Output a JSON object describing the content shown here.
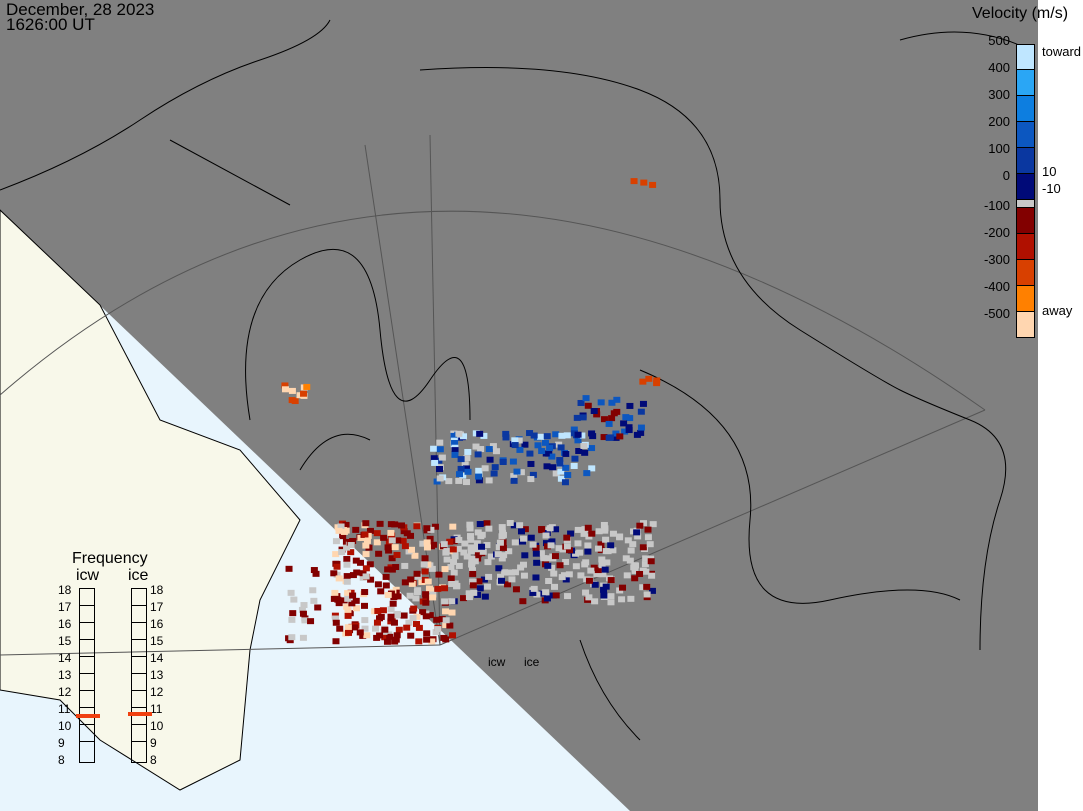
{
  "header": {
    "date": "December, 28 2023",
    "time": "1626:00 UT"
  },
  "legend": {
    "title": "Velocity (m/s)",
    "ticks": [
      "500",
      "400",
      "300",
      "200",
      "100",
      "0",
      "-100",
      "-200",
      "-300",
      "-400",
      "-500"
    ],
    "toward_label": "toward",
    "away_label": "away",
    "pos_threshold": "10",
    "neg_threshold": "-10",
    "colors": [
      "#bfe6ff",
      "#2aa6f5",
      "#0d7ee0",
      "#0c57c0",
      "#0a37a0",
      "#000a78",
      "#c8c8c8",
      "#820000",
      "#b01000",
      "#d84000",
      "#ff8000",
      "#ffd6b0"
    ]
  },
  "frequency": {
    "title": "Frequency",
    "radars": [
      {
        "name": "icw",
        "value_mhz": 10.7
      },
      {
        "name": "ice",
        "value_mhz": 10.8
      }
    ],
    "ticks": [
      "18",
      "17",
      "16",
      "15",
      "14",
      "13",
      "12",
      "11",
      "10",
      "9",
      "8"
    ],
    "range": [
      8,
      18
    ]
  },
  "sites": {
    "icw": "icw",
    "ice": "ice"
  },
  "colors": {
    "night": "#808080",
    "day_land": "#f8f8ea",
    "day_ocean": "#e8f5fd",
    "marker": "#f04010"
  }
}
